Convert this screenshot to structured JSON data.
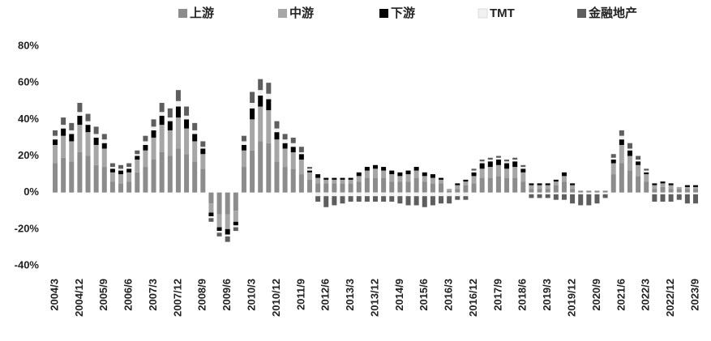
{
  "chart_data": {
    "type": "stacked_bar",
    "categories": [
      "2004/3",
      null,
      null,
      "2004/12",
      null,
      null,
      "2005/9",
      null,
      null,
      "2006/6",
      null,
      null,
      "2007/3",
      null,
      null,
      "2007/12",
      null,
      null,
      "2008/9",
      null,
      null,
      "2009/6",
      null,
      null,
      "2010/3",
      null,
      null,
      "2010/12",
      null,
      null,
      "2011/9",
      null,
      null,
      "2012/6",
      null,
      null,
      "2013/3",
      null,
      null,
      "2013/12",
      null,
      null,
      "2014/9",
      null,
      null,
      "2015/6",
      null,
      null,
      "2016/3",
      null,
      null,
      "2016/12",
      null,
      null,
      "2017/9",
      null,
      null,
      "2018/6",
      null,
      null,
      "2019/3",
      null,
      null,
      "2019/12",
      null,
      null,
      "2020/9",
      null,
      null,
      "2021/6",
      null,
      null,
      "2022/3",
      null,
      null,
      "2022/12",
      null,
      null,
      "2023/9"
    ],
    "series": [
      {
        "name": "上游",
        "color": "#8c8c8c",
        "values": [
          16,
          19,
          17,
          22,
          20,
          15,
          14,
          6,
          5,
          6,
          11,
          14,
          18,
          22,
          20,
          24,
          21,
          17,
          13,
          -6,
          -12,
          -12,
          -10,
          14,
          23,
          28,
          27,
          17,
          14,
          13,
          10,
          7,
          5,
          5,
          5,
          5,
          5,
          6,
          8,
          8,
          8,
          6,
          6,
          6,
          8,
          6,
          5,
          5,
          1,
          2,
          4,
          5,
          8,
          8,
          9,
          8,
          8,
          6,
          2,
          2,
          2,
          4,
          6,
          2,
          1,
          1,
          1,
          1,
          10,
          16,
          12,
          9,
          6,
          2,
          3,
          2,
          2,
          2,
          2
        ]
      },
      {
        "name": "中游",
        "color": "#a6a6a6",
        "values": [
          10,
          12,
          11,
          15,
          13,
          11,
          10,
          5,
          5,
          5,
          7,
          9,
          12,
          15,
          14,
          17,
          14,
          11,
          8,
          -5,
          -7,
          -8,
          -6,
          9,
          17,
          19,
          18,
          12,
          10,
          9,
          8,
          4,
          3,
          2,
          2,
          2,
          2,
          3,
          4,
          5,
          4,
          4,
          3,
          4,
          4,
          3,
          3,
          2,
          1,
          2,
          2,
          4,
          5,
          6,
          6,
          5,
          6,
          5,
          2,
          2,
          2,
          2,
          3,
          2,
          0,
          0,
          0,
          0,
          6,
          10,
          8,
          6,
          4,
          2,
          2,
          2,
          1,
          1,
          1
        ]
      },
      {
        "name": "下游",
        "color": "#000000",
        "values": [
          3,
          4,
          4,
          5,
          4,
          4,
          3,
          2,
          2,
          2,
          2,
          3,
          4,
          5,
          5,
          6,
          5,
          4,
          3,
          -2,
          -2,
          -3,
          -2,
          3,
          6,
          6,
          6,
          4,
          3,
          3,
          3,
          1,
          2,
          1,
          1,
          1,
          1,
          2,
          2,
          2,
          2,
          2,
          2,
          2,
          2,
          2,
          2,
          1,
          0,
          1,
          1,
          2,
          3,
          3,
          3,
          3,
          3,
          2,
          1,
          1,
          1,
          1,
          2,
          1,
          0,
          0,
          0,
          0,
          2,
          3,
          3,
          2,
          1,
          1,
          1,
          1,
          0,
          1,
          1
        ]
      },
      {
        "name": "TMT",
        "color": "#f0f0f0",
        "values": [
          2,
          2,
          2,
          2,
          2,
          2,
          2,
          1,
          1,
          1,
          1,
          2,
          2,
          2,
          2,
          3,
          2,
          2,
          1,
          -1,
          -1,
          -1,
          -1,
          2,
          3,
          3,
          3,
          2,
          2,
          2,
          1,
          1,
          -2,
          -2,
          -2,
          -2,
          -2,
          -2,
          -2,
          -2,
          -2,
          -2,
          -2,
          -2,
          -2,
          -2,
          -2,
          -2,
          -2,
          -2,
          -2,
          1,
          1,
          1,
          1,
          1,
          1,
          1,
          -1,
          -1,
          -1,
          -1,
          -1,
          -1,
          -1,
          -1,
          -1,
          -1,
          1,
          2,
          1,
          1,
          1,
          -1,
          -1,
          -1,
          -1,
          -1,
          -1
        ]
      },
      {
        "name": "金融地产",
        "color": "#5e5e5e",
        "values": [
          3,
          4,
          4,
          5,
          4,
          4,
          3,
          2,
          2,
          2,
          2,
          3,
          4,
          5,
          5,
          6,
          5,
          4,
          3,
          -2,
          -2,
          -3,
          -2,
          3,
          6,
          6,
          6,
          4,
          3,
          3,
          3,
          1,
          -3,
          -6,
          -5,
          -4,
          -3,
          -3,
          -3,
          -3,
          -3,
          -3,
          -4,
          -5,
          -5,
          -6,
          -5,
          -4,
          -4,
          -2,
          -2,
          1,
          1,
          1,
          1,
          1,
          1,
          1,
          -2,
          -2,
          -2,
          -3,
          -3,
          -5,
          -6,
          -6,
          -5,
          -2,
          2,
          3,
          3,
          2,
          1,
          -4,
          -4,
          -4,
          -3,
          -5,
          -5
        ]
      }
    ],
    "ylim": [
      -40,
      80
    ],
    "yticks": [
      {
        "value": -40,
        "label": "-40%"
      },
      {
        "value": -20,
        "label": "-20%"
      },
      {
        "value": 0,
        "label": "0%"
      },
      {
        "value": 20,
        "label": "20%"
      },
      {
        "value": 40,
        "label": "40%"
      },
      {
        "value": 60,
        "label": "60%"
      },
      {
        "value": 80,
        "label": "80%"
      }
    ],
    "legend": "top"
  }
}
